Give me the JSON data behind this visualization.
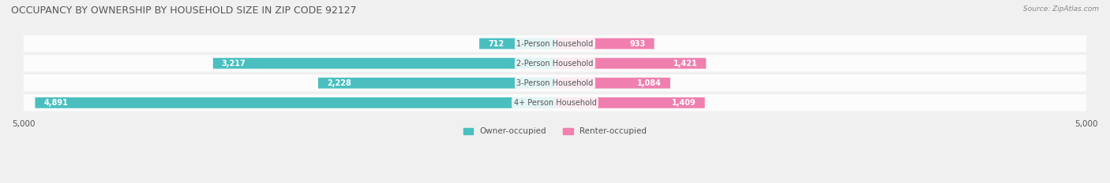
{
  "title": "OCCUPANCY BY OWNERSHIP BY HOUSEHOLD SIZE IN ZIP CODE 92127",
  "source": "Source: ZipAtlas.com",
  "categories": [
    "1-Person Household",
    "2-Person Household",
    "3-Person Household",
    "4+ Person Household"
  ],
  "owner_values": [
    712,
    3217,
    2228,
    4891
  ],
  "renter_values": [
    933,
    1421,
    1084,
    1409
  ],
  "owner_color": "#4BBFBF",
  "renter_color": "#F07FAF",
  "background_color": "#f0f0f0",
  "bar_bg_color": "#e0e0e0",
  "max_value": 5000,
  "x_tick_labels": [
    "5,000",
    "5,000"
  ],
  "legend_owner": "Owner-occupied",
  "legend_renter": "Renter-occupied",
  "title_fontsize": 9,
  "label_fontsize": 7.5,
  "bar_label_fontsize": 7,
  "category_fontsize": 7
}
